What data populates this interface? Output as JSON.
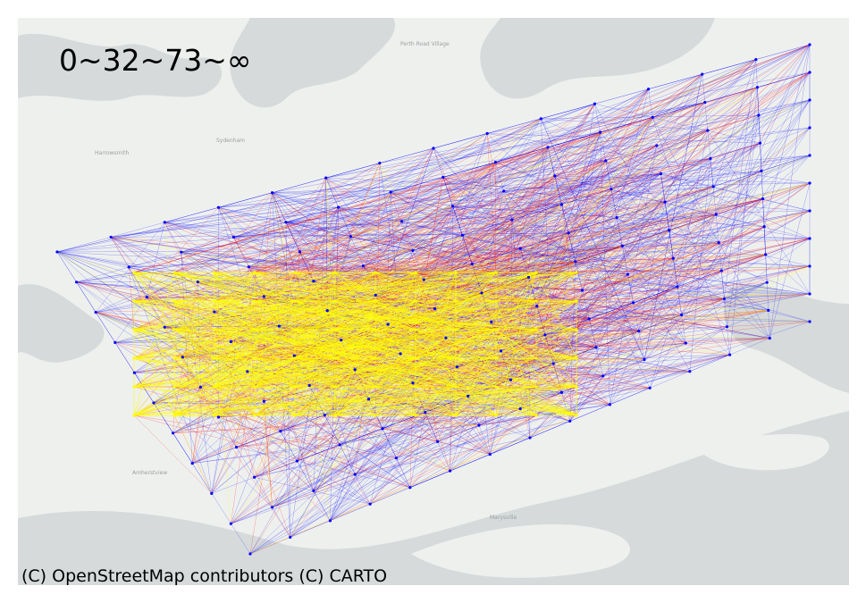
{
  "legend": {
    "title": "0~32~73~∞",
    "bins": [
      {
        "range": "0-32",
        "color": "#ffff00"
      },
      {
        "range": "32-73",
        "color": "#ff0000"
      },
      {
        "range": "73-inf",
        "color": "#0000ff"
      }
    ]
  },
  "attribution": "(C) OpenStreetMap contributors (C) CARTO",
  "basemap": {
    "style": "light",
    "land_color": "#eef0ee",
    "water_color": "#d6dadb",
    "places": [
      {
        "name": "Perth Road Village"
      },
      {
        "name": "Sydenham"
      },
      {
        "name": "Harrowsmith"
      },
      {
        "name": "Amherstview"
      },
      {
        "name": "Marysville"
      }
    ]
  },
  "flow_colors": {
    "low": "#ffff00",
    "mid": "#ff0000",
    "high": "#0000ff"
  }
}
